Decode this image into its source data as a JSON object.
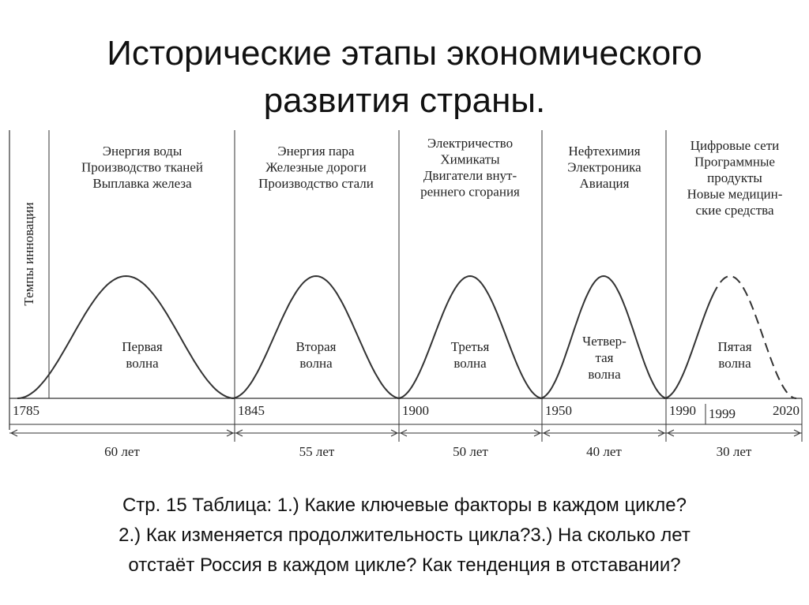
{
  "title_lines": [
    "Исторические этапы экономического",
    "развития страны."
  ],
  "diagram": {
    "y_axis_label": "Темпы инновации",
    "eras": [
      {
        "factors": [
          "Энергия воды",
          "Производство тканей",
          "Выплавка железа"
        ],
        "wave": [
          "Первая",
          "волна"
        ],
        "start_year": "1785",
        "duration": "60 лет"
      },
      {
        "factors": [
          "Энергия пара",
          "Железные дороги",
          "Производство стали"
        ],
        "wave": [
          "Вторая",
          "волна"
        ],
        "start_year": "1845",
        "duration": "55 лет"
      },
      {
        "factors": [
          "Электричество",
          "Химикаты",
          "Двигатели внут-",
          "реннего сгорания"
        ],
        "wave": [
          "Третья",
          "волна"
        ],
        "start_year": "1900",
        "duration": "50 лет"
      },
      {
        "factors": [
          "Нефтехимия",
          "Электроника",
          "Авиация"
        ],
        "wave": [
          "Четвер-",
          "тая",
          "волна"
        ],
        "start_year": "1950",
        "duration": "40 лет"
      },
      {
        "factors": [
          "Цифровые сети",
          "Программные",
          "продукты",
          "Новые медицин-",
          "ские средства"
        ],
        "wave": [
          "Пятая",
          "волна"
        ],
        "start_year": "1990",
        "duration": "30 лет"
      }
    ],
    "extra_year": "1999",
    "end_year": "2020"
  },
  "question_lines": [
    "Стр. 15 Таблица: 1.) Какие ключевые факторы в каждом цикле?",
    "2.) Как изменяется продолжительность цикла?3.) На сколько лет",
    "отстаёт Россия в каждом цикле? Как тенденция в отставании?"
  ]
}
